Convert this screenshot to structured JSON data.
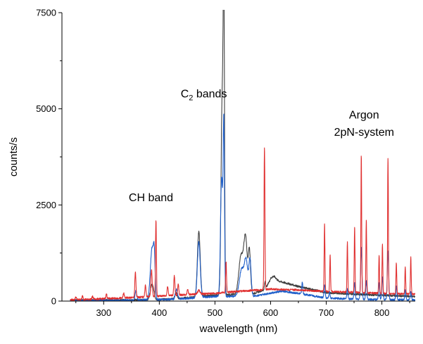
{
  "chart_data": {
    "type": "line",
    "xlabel": "wavelength (nm)",
    "ylabel": "counts/s",
    "xlim": [
      225,
      860
    ],
    "ylim": [
      0,
      7500
    ],
    "x_ticks": [
      300,
      400,
      500,
      600,
      700,
      800
    ],
    "y_ticks": [
      0,
      2500,
      5000,
      7500
    ],
    "grid": false,
    "annotations": [
      {
        "text": "CH band",
        "x": 385,
        "y": 2600
      },
      {
        "text": "C",
        "sub": "2",
        "rest": " bands",
        "x": 480,
        "y": 5300
      },
      {
        "text": "Argon",
        "x": 768,
        "y": 4750
      },
      {
        "text": "2pN-system",
        "x": 768,
        "y": 4300
      }
    ],
    "series": [
      {
        "color": "#404040",
        "baseline": [
          [
            240,
            20
          ],
          [
            380,
            30
          ],
          [
            430,
            60
          ],
          [
            500,
            150
          ],
          [
            570,
            200
          ],
          [
            590,
            300
          ],
          [
            600,
            560
          ],
          [
            620,
            500
          ],
          [
            650,
            380
          ],
          [
            700,
            220
          ],
          [
            750,
            180
          ],
          [
            800,
            150
          ],
          [
            860,
            120
          ]
        ],
        "peaks": [
          {
            "x": 387,
            "h": 400,
            "w": 3
          },
          {
            "x": 430,
            "h": 150,
            "w": 2
          },
          {
            "x": 471,
            "h": 1700,
            "w": 2.5
          },
          {
            "x": 513,
            "h": 5100,
            "w": 2
          },
          {
            "x": 516,
            "h": 6950,
            "w": 1.2
          },
          {
            "x": 547,
            "h": 1000,
            "w": 4
          },
          {
            "x": 555,
            "h": 1400,
            "w": 3
          },
          {
            "x": 562,
            "h": 1100,
            "w": 2
          },
          {
            "x": 590,
            "h": 200,
            "w": 1
          },
          {
            "x": 606,
            "h": 100,
            "w": 4
          }
        ]
      },
      {
        "color": "#1f5fc9",
        "baseline": [
          [
            240,
            10
          ],
          [
            350,
            20
          ],
          [
            430,
            50
          ],
          [
            500,
            120
          ],
          [
            570,
            130
          ],
          [
            590,
            180
          ],
          [
            620,
            260
          ],
          [
            650,
            200
          ],
          [
            700,
            80
          ],
          [
            750,
            50
          ],
          [
            800,
            40
          ],
          [
            860,
            30
          ]
        ],
        "peaks": [
          {
            "x": 358,
            "h": 250,
            "w": 1.5
          },
          {
            "x": 387,
            "h": 1350,
            "w": 3
          },
          {
            "x": 391,
            "h": 850,
            "w": 1.5
          },
          {
            "x": 431,
            "h": 250,
            "w": 2
          },
          {
            "x": 471,
            "h": 1450,
            "w": 2.5
          },
          {
            "x": 512,
            "h": 3100,
            "w": 2
          },
          {
            "x": 516,
            "h": 4300,
            "w": 1.2
          },
          {
            "x": 548,
            "h": 700,
            "w": 4
          },
          {
            "x": 556,
            "h": 900,
            "w": 3
          },
          {
            "x": 563,
            "h": 950,
            "w": 2
          },
          {
            "x": 657,
            "h": 300,
            "w": 1
          },
          {
            "x": 697,
            "h": 350,
            "w": 1
          },
          {
            "x": 706,
            "h": 150,
            "w": 1
          },
          {
            "x": 738,
            "h": 250,
            "w": 1
          },
          {
            "x": 751,
            "h": 450,
            "w": 1
          },
          {
            "x": 763,
            "h": 1350,
            "w": 1.2
          },
          {
            "x": 772,
            "h": 500,
            "w": 1
          },
          {
            "x": 795,
            "h": 450,
            "w": 1
          },
          {
            "x": 801,
            "h": 600,
            "w": 1
          },
          {
            "x": 811,
            "h": 1250,
            "w": 1.2
          },
          {
            "x": 826,
            "h": 350,
            "w": 1
          },
          {
            "x": 842,
            "h": 250,
            "w": 1
          },
          {
            "x": 852,
            "h": 200,
            "w": 1
          }
        ]
      },
      {
        "color": "#e03030",
        "baseline": [
          [
            240,
            30
          ],
          [
            300,
            60
          ],
          [
            350,
            90
          ],
          [
            400,
            130
          ],
          [
            450,
            170
          ],
          [
            500,
            200
          ],
          [
            540,
            250
          ],
          [
            600,
            310
          ],
          [
            650,
            290
          ],
          [
            700,
            250
          ],
          [
            750,
            230
          ],
          [
            800,
            200
          ],
          [
            860,
            180
          ]
        ],
        "peaks": [
          {
            "x": 250,
            "h": 70,
            "w": 1
          },
          {
            "x": 262,
            "h": 90,
            "w": 1
          },
          {
            "x": 280,
            "h": 70,
            "w": 1
          },
          {
            "x": 305,
            "h": 120,
            "w": 1
          },
          {
            "x": 336,
            "h": 120,
            "w": 1
          },
          {
            "x": 357,
            "h": 650,
            "w": 1
          },
          {
            "x": 375,
            "h": 300,
            "w": 1
          },
          {
            "x": 386,
            "h": 700,
            "w": 1.2
          },
          {
            "x": 394,
            "h": 2000,
            "w": 0.8
          },
          {
            "x": 415,
            "h": 250,
            "w": 1
          },
          {
            "x": 427,
            "h": 500,
            "w": 1
          },
          {
            "x": 434,
            "h": 300,
            "w": 1
          },
          {
            "x": 451,
            "h": 150,
            "w": 1
          },
          {
            "x": 471,
            "h": 100,
            "w": 2
          },
          {
            "x": 520,
            "h": 800,
            "w": 0.8
          },
          {
            "x": 589,
            "h": 3700,
            "w": 0.8
          },
          {
            "x": 697,
            "h": 1750,
            "w": 0.7
          },
          {
            "x": 707,
            "h": 950,
            "w": 0.7
          },
          {
            "x": 738,
            "h": 1300,
            "w": 0.7
          },
          {
            "x": 751,
            "h": 1700,
            "w": 0.7
          },
          {
            "x": 763,
            "h": 3600,
            "w": 0.7
          },
          {
            "x": 772,
            "h": 1900,
            "w": 0.7
          },
          {
            "x": 795,
            "h": 1000,
            "w": 0.7
          },
          {
            "x": 801,
            "h": 1300,
            "w": 0.7
          },
          {
            "x": 811,
            "h": 3550,
            "w": 0.7
          },
          {
            "x": 826,
            "h": 800,
            "w": 0.7
          },
          {
            "x": 842,
            "h": 700,
            "w": 0.7
          },
          {
            "x": 852,
            "h": 950,
            "w": 0.7
          }
        ]
      }
    ]
  }
}
